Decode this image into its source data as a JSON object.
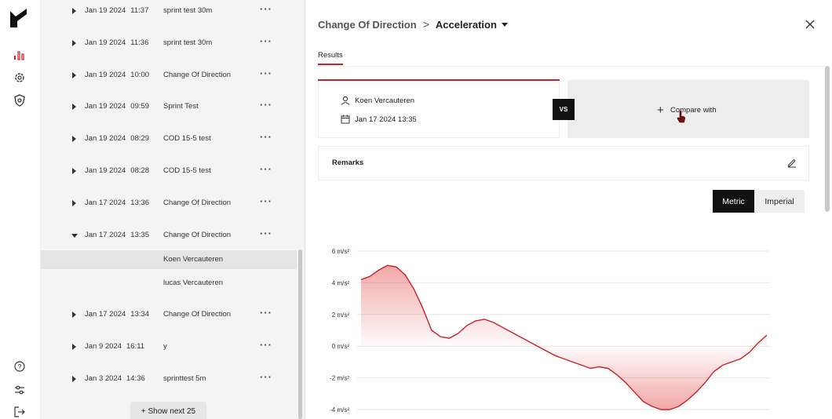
{
  "sidebar": {
    "icons": [
      "logo-icon",
      "analytics-icon",
      "settings-icon",
      "shield-icon",
      "help-icon",
      "sliders-icon",
      "logout-icon"
    ]
  },
  "sessions": [
    {
      "date": "Jan 19 2024",
      "time": "11:37",
      "name": "sprint test 30m"
    },
    {
      "date": "Jan 19 2024",
      "time": "11:36",
      "name": "sprint test 30m"
    },
    {
      "date": "Jan 19 2024",
      "time": "10:00",
      "name": "Change Of Direction"
    },
    {
      "date": "Jan 19 2024",
      "time": "09:59",
      "name": "Sprint Test"
    },
    {
      "date": "Jan 19 2024",
      "time": "08:29",
      "name": "COD 15-5 test"
    },
    {
      "date": "Jan 19 2024",
      "time": "08:28",
      "name": "COD 15-5 test"
    },
    {
      "date": "Jan 17 2024",
      "time": "13:36",
      "name": "Change Of Direction"
    },
    {
      "date": "Jan 17 2024",
      "time": "13:35",
      "name": "Change Of Direction",
      "open": true
    },
    {
      "date": "Jan 17 2024",
      "time": "13:34",
      "name": "Change Of Direction"
    },
    {
      "date": "Jan 9 2024",
      "time": "16:11",
      "name": "y"
    },
    {
      "date": "Jan 3 2024",
      "time": "14:36",
      "name": "sprinttest 5m"
    }
  ],
  "expanded_athletes": [
    "Koen Vercauteren",
    "lucas Vercauteren"
  ],
  "more_label": "···",
  "show_next_label": "+ Show next 25",
  "detail": {
    "breadcrumb_parent": "Change Of Direction",
    "breadcrumb_sep": ">",
    "breadcrumb_current": "Acceleration",
    "tab_results": "Results",
    "athlete": "Koen Vercauteren",
    "session_datetime": "Jan 17 2024 13:35",
    "vs_label": "VS",
    "compare_plus": "+",
    "compare_label": "Compare with",
    "remarks_label": "Remarks",
    "unit_metric": "Metric",
    "unit_imperial": "Imperial"
  },
  "colors": {
    "accent": "#c8202a",
    "dark": "#111111"
  },
  "chart_data": {
    "type": "area",
    "title": "",
    "xlabel": "",
    "ylabel": "",
    "yticks": [
      "6 m/s²",
      "4 m/s²",
      "2 m/s²",
      "0 m/s²",
      "-2 m/s²",
      "-4 m/s²"
    ],
    "ylim": [
      -4,
      6
    ],
    "series": [
      {
        "values": [
          4.2,
          4.4,
          4.8,
          5.1,
          5.0,
          4.5,
          3.6,
          2.4,
          1.0,
          0.6,
          0.5,
          0.8,
          1.3,
          1.6,
          1.7,
          1.5,
          1.2,
          0.9,
          0.6,
          0.3,
          0.0,
          -0.3,
          -0.6,
          -0.8,
          -1.0,
          -1.2,
          -1.4,
          -1.3,
          -1.4,
          -1.8,
          -2.3,
          -2.9,
          -3.5,
          -3.8,
          -4.0,
          -4.0,
          -3.8,
          -3.4,
          -2.9,
          -2.3,
          -1.6,
          -1.2,
          -1.0,
          -0.8,
          -0.4,
          0.2,
          0.7
        ]
      }
    ]
  }
}
